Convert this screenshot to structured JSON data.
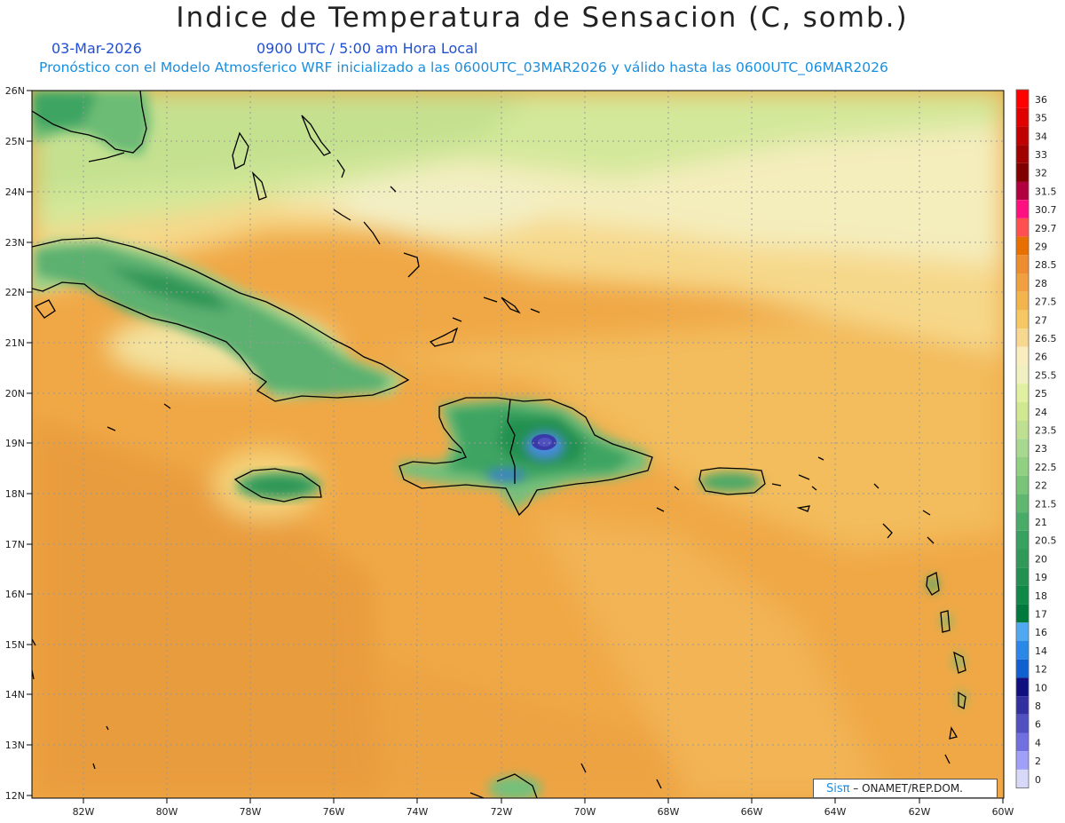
{
  "header": {
    "title": "Indice de Temperatura de Sensacion (C, somb.)",
    "date": "03-Mar-2026",
    "time": "0900 UTC / 5:00 am Hora Local",
    "model_info": "Pronóstico con el Modelo Atmosferico WRF inicializado a las 0600UTC_03MAR2026 y válido hasta las  0600UTC_06MAR2026"
  },
  "axes": {
    "lat_labels": [
      "26N",
      "25N",
      "24N",
      "23N",
      "22N",
      "21N",
      "20N",
      "19N",
      "18N",
      "17N",
      "16N",
      "15N",
      "14N",
      "13N",
      "12N"
    ],
    "lon_labels": [
      "82W",
      "80W",
      "78W",
      "76W",
      "74W",
      "72W",
      "70W",
      "68W",
      "66W",
      "64W",
      "62W",
      "60W"
    ]
  },
  "legend": {
    "items": [
      {
        "label": "36",
        "color": "#ff0000"
      },
      {
        "label": "35",
        "color": "#e00000"
      },
      {
        "label": "34",
        "color": "#c00000"
      },
      {
        "label": "33",
        "color": "#a00000"
      },
      {
        "label": "32",
        "color": "#800000"
      },
      {
        "label": "31.5",
        "color": "#b00040"
      },
      {
        "label": "30.7",
        "color": "#ff1080"
      },
      {
        "label": "29.7",
        "color": "#ff5050"
      },
      {
        "label": "29",
        "color": "#e87000"
      },
      {
        "label": "28.5",
        "color": "#ee8c30"
      },
      {
        "label": "28",
        "color": "#f0a040"
      },
      {
        "label": "27.5",
        "color": "#f2b44c"
      },
      {
        "label": "27",
        "color": "#f5c864"
      },
      {
        "label": "26.5",
        "color": "#f7d890"
      },
      {
        "label": "26",
        "color": "#faedc0"
      },
      {
        "label": "25.5",
        "color": "#f0f0c0"
      },
      {
        "label": "25",
        "color": "#e0f0a0"
      },
      {
        "label": "24",
        "color": "#d0e890"
      },
      {
        "label": "23.5",
        "color": "#bfe090"
      },
      {
        "label": "23",
        "color": "#a8d890"
      },
      {
        "label": "22.5",
        "color": "#90d080"
      },
      {
        "label": "22",
        "color": "#78c478"
      },
      {
        "label": "21.5",
        "color": "#60b870"
      },
      {
        "label": "21",
        "color": "#48ac68"
      },
      {
        "label": "20.5",
        "color": "#38a060"
      },
      {
        "label": "20",
        "color": "#309858"
      },
      {
        "label": "19",
        "color": "#229050"
      },
      {
        "label": "18",
        "color": "#108848"
      },
      {
        "label": "17",
        "color": "#007a3c"
      },
      {
        "label": "16",
        "color": "#50a8f0"
      },
      {
        "label": "14",
        "color": "#2c88e8"
      },
      {
        "label": "12",
        "color": "#1060d0"
      },
      {
        "label": "10",
        "color": "#101080"
      },
      {
        "label": "8",
        "color": "#3030a0"
      },
      {
        "label": "6",
        "color": "#5050c0"
      },
      {
        "label": "4",
        "color": "#7070e0"
      },
      {
        "label": "2",
        "color": "#a0a0f8"
      },
      {
        "label": "0",
        "color": "#d8d8f8"
      }
    ]
  },
  "credit": {
    "sis": "Sisπ",
    "org": " – ONAMET/REP.DOM."
  }
}
